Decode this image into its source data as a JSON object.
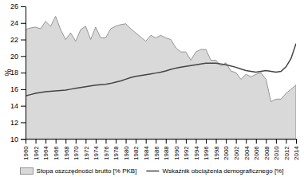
{
  "chart_data": {
    "type": "line",
    "ylabel": "%",
    "x": [
      1960,
      1961,
      1962,
      1963,
      1964,
      1965,
      1966,
      1967,
      1968,
      1969,
      1970,
      1971,
      1972,
      1973,
      1974,
      1975,
      1976,
      1977,
      1978,
      1979,
      1980,
      1981,
      1982,
      1983,
      1984,
      1985,
      1986,
      1987,
      1988,
      1989,
      1990,
      1991,
      1992,
      1993,
      1994,
      1995,
      1996,
      1997,
      1998,
      1999,
      2000,
      2001,
      2002,
      2003,
      2004,
      2005,
      2006,
      2007,
      2008,
      2009,
      2010,
      2011,
      2012,
      2013,
      2014
    ],
    "series": [
      {
        "name": "Stopa oszczędności brutto [% PKB]",
        "type": "area",
        "color": "#d9d9d9",
        "values": [
          23.2,
          23.4,
          23.5,
          23.3,
          24.2,
          23.6,
          24.8,
          23.2,
          22.0,
          22.8,
          21.8,
          23.2,
          23.6,
          22.0,
          23.5,
          22.2,
          22.2,
          23.3,
          23.6,
          23.8,
          23.9,
          23.3,
          22.8,
          22.3,
          21.8,
          22.5,
          22.2,
          22.5,
          22.2,
          22.0,
          21.0,
          20.5,
          20.5,
          19.5,
          20.5,
          20.8,
          20.8,
          19.5,
          19.5,
          18.8,
          19.2,
          18.2,
          18.0,
          17.2,
          17.8,
          17.5,
          17.8,
          18.0,
          17.2,
          14.5,
          14.8,
          14.8,
          15.5,
          16.0,
          16.5
        ]
      },
      {
        "name": "Wskaźnik obciążenia demograficznego [%]",
        "type": "line",
        "color": "#444444",
        "values": [
          15.2,
          15.35,
          15.5,
          15.6,
          15.7,
          15.75,
          15.8,
          15.85,
          15.9,
          16.0,
          16.1,
          16.2,
          16.3,
          16.4,
          16.5,
          16.55,
          16.6,
          16.7,
          16.85,
          17.0,
          17.2,
          17.4,
          17.55,
          17.65,
          17.75,
          17.85,
          17.95,
          18.05,
          18.2,
          18.4,
          18.55,
          18.65,
          18.75,
          18.85,
          18.95,
          19.05,
          19.15,
          19.15,
          19.15,
          19.05,
          18.95,
          18.8,
          18.65,
          18.45,
          18.25,
          18.15,
          18.05,
          18.15,
          18.25,
          18.15,
          18.05,
          18.15,
          18.7,
          19.7,
          21.5
        ]
      }
    ],
    "xlim": [
      1960,
      2014
    ],
    "xticks": [
      1960,
      1962,
      1964,
      1966,
      1968,
      1970,
      1972,
      1974,
      1976,
      1978,
      1980,
      1982,
      1984,
      1986,
      1988,
      1990,
      1992,
      1994,
      1996,
      1998,
      2000,
      2002,
      2004,
      2006,
      2008,
      2010,
      2012,
      2014
    ],
    "ylim": [
      10,
      26
    ],
    "yticks": [
      10,
      12,
      14,
      16,
      18,
      20,
      22,
      24,
      26
    ],
    "grid": false,
    "legend": "bottom"
  }
}
